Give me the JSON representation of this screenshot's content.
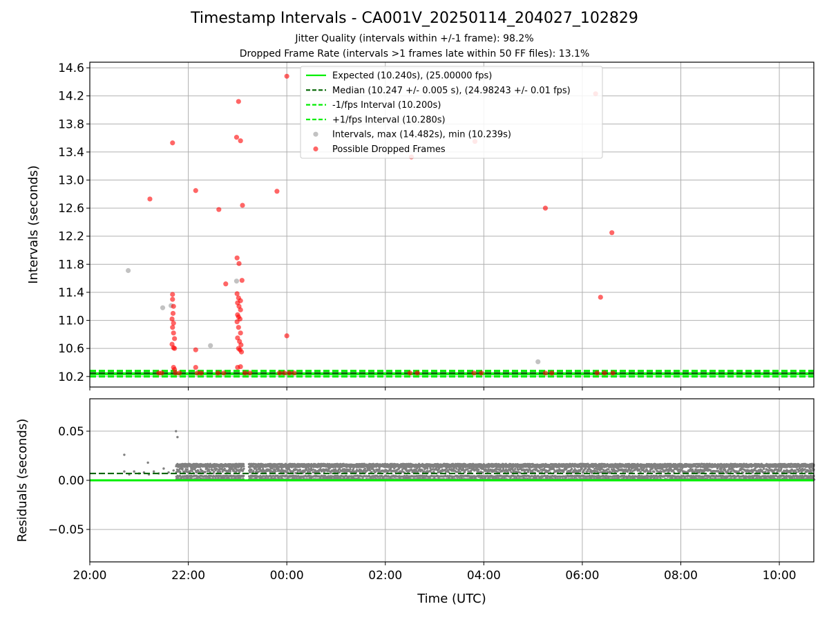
{
  "chart_data": [
    {
      "type": "scatter",
      "title": "Timestamp Intervals - CA001V_20250114_204027_102829",
      "subtitles": [
        "Jitter Quality (intervals within +/-1 frame): 98.2%",
        "Dropped Frame Rate (intervals >1 frames late within 50 FF files): 13.1%"
      ],
      "ylabel": "Intervals (seconds)",
      "xlim_hours": [
        20.0,
        34.7
      ],
      "ylim": [
        10.05,
        14.68
      ],
      "yticks": [
        "10.2",
        "10.6",
        "11.0",
        "11.4",
        "11.8",
        "12.2",
        "12.6",
        "13.0",
        "13.4",
        "13.8",
        "14.2",
        "14.6"
      ],
      "ytick_values": [
        10.2,
        10.6,
        11.0,
        11.4,
        11.8,
        12.2,
        12.6,
        13.0,
        13.4,
        13.8,
        14.2,
        14.6
      ],
      "grid": true,
      "legend_position": "top-center",
      "lines": [
        {
          "name": "Expected (10.240s), (25.00000 fps)",
          "y": 10.24,
          "color": "#00ee00",
          "dash": "solid"
        },
        {
          "name": "Median (10.247 +/- 0.005 s), (24.98243 +/- 0.01 fps)",
          "y": 10.247,
          "color": "#006400",
          "dash": "dashed"
        },
        {
          "name": "-1/fps Interval (10.200s)",
          "y": 10.2,
          "color": "#00ee00",
          "dash": "dashed"
        },
        {
          "name": "+1/fps Interval (10.280s)",
          "y": 10.28,
          "color": "#00ee00",
          "dash": "dashed"
        }
      ],
      "series": [
        {
          "name": "Intervals, max (14.482s), min (10.239s)",
          "color": "#999999",
          "points": [
            [
              20.78,
              11.71
            ],
            [
              21.48,
              11.18
            ],
            [
              21.65,
              11.21
            ],
            [
              22.45,
              10.64
            ],
            [
              22.98,
              11.56
            ],
            [
              29.1,
              10.41
            ]
          ]
        },
        {
          "name": "Possible Dropped Frames",
          "color": "#ff0000",
          "points": [
            [
              21.22,
              12.73
            ],
            [
              21.68,
              13.53
            ],
            [
              22.15,
              12.85
            ],
            [
              22.62,
              12.58
            ],
            [
              22.76,
              11.52
            ],
            [
              22.98,
              13.61
            ],
            [
              23.02,
              14.12
            ],
            [
              23.06,
              13.56
            ],
            [
              23.1,
              12.64
            ],
            [
              22.99,
              11.89
            ],
            [
              23.03,
              11.81
            ],
            [
              23.09,
              11.57
            ],
            [
              23.8,
              12.84
            ],
            [
              24.0,
              14.48
            ],
            [
              24.0,
              10.78
            ],
            [
              22.15,
              10.58
            ],
            [
              22.15,
              10.33
            ],
            [
              26.53,
              13.33
            ],
            [
              27.82,
              13.55
            ],
            [
              29.25,
              12.6
            ],
            [
              30.27,
              14.23
            ],
            [
              30.37,
              11.33
            ],
            [
              30.6,
              12.25
            ],
            [
              21.68,
              11.37
            ],
            [
              21.68,
              11.3
            ],
            [
              21.7,
              11.2
            ],
            [
              21.69,
              11.1
            ],
            [
              21.67,
              11.02
            ],
            [
              21.7,
              10.96
            ],
            [
              21.68,
              10.9
            ],
            [
              21.7,
              10.82
            ],
            [
              21.72,
              10.74
            ],
            [
              21.67,
              10.66
            ],
            [
              21.7,
              10.61
            ],
            [
              21.72,
              10.6
            ],
            [
              21.7,
              10.33
            ],
            [
              21.72,
              10.3
            ],
            [
              22.99,
              11.38
            ],
            [
              23.02,
              11.32
            ],
            [
              23.06,
              11.28
            ],
            [
              23.0,
              11.25
            ],
            [
              23.03,
              11.2
            ],
            [
              23.06,
              11.15
            ],
            [
              23.0,
              11.08
            ],
            [
              23.02,
              11.05
            ],
            [
              23.05,
              11.02
            ],
            [
              22.99,
              10.98
            ],
            [
              23.02,
              10.9
            ],
            [
              23.06,
              10.82
            ],
            [
              23.0,
              10.75
            ],
            [
              23.04,
              10.7
            ],
            [
              23.07,
              10.65
            ],
            [
              23.02,
              10.6
            ],
            [
              23.05,
              10.58
            ],
            [
              23.08,
              10.55
            ],
            [
              23.0,
              10.33
            ],
            [
              23.06,
              10.34
            ],
            [
              21.4,
              10.25
            ],
            [
              21.46,
              10.25
            ],
            [
              21.74,
              10.25
            ],
            [
              21.82,
              10.25
            ],
            [
              22.18,
              10.25
            ],
            [
              22.26,
              10.25
            ],
            [
              22.6,
              10.25
            ],
            [
              22.72,
              10.25
            ],
            [
              23.15,
              10.25
            ],
            [
              23.25,
              10.25
            ],
            [
              23.85,
              10.25
            ],
            [
              23.95,
              10.25
            ],
            [
              24.05,
              10.25
            ],
            [
              24.15,
              10.25
            ],
            [
              26.5,
              10.25
            ],
            [
              26.65,
              10.25
            ],
            [
              27.8,
              10.25
            ],
            [
              27.95,
              10.25
            ],
            [
              29.25,
              10.25
            ],
            [
              29.38,
              10.25
            ],
            [
              30.3,
              10.25
            ],
            [
              30.45,
              10.25
            ],
            [
              30.62,
              10.25
            ]
          ]
        }
      ]
    },
    {
      "type": "scatter",
      "ylabel": "Residuals (seconds)",
      "xlabel": "Time (UTC)",
      "xlim_hours": [
        20.0,
        34.7
      ],
      "ylim": [
        -0.083,
        0.083
      ],
      "yticks": [
        "−0.05",
        "0.00",
        "0.05"
      ],
      "ytick_values": [
        -0.05,
        0.0,
        0.05
      ],
      "xticks": [
        "20:00",
        "22:00",
        "00:00",
        "02:00",
        "04:00",
        "06:00",
        "08:00",
        "10:00"
      ],
      "xtick_hours": [
        20,
        22,
        24,
        26,
        28,
        30,
        32,
        34
      ],
      "grid": true,
      "lines": [
        {
          "y": 0.0,
          "color": "#00ee00",
          "dash": "solid"
        },
        {
          "y": 0.007,
          "color": "#006400",
          "dash": "dashed"
        }
      ],
      "series": [
        {
          "color": "#808080",
          "x_range_hours": [
            21.75,
            34.7
          ],
          "y_band": [
            0.0,
            0.016
          ],
          "gap_hours": [
            23.12,
            23.22
          ],
          "outliers": [
            [
              20.7,
              0.026
            ],
            [
              21.18,
              0.018
            ],
            [
              21.75,
              0.05
            ],
            [
              21.78,
              0.044
            ]
          ],
          "early_points": [
            [
              20.7,
              0.009
            ],
            [
              20.8,
              0.006
            ],
            [
              20.9,
              0.009
            ],
            [
              21.0,
              0.007
            ],
            [
              21.1,
              0.008
            ],
            [
              21.2,
              0.006
            ],
            [
              21.3,
              0.009
            ],
            [
              21.4,
              0.007
            ],
            [
              21.5,
              0.012
            ],
            [
              21.6,
              0.008
            ],
            [
              21.7,
              0.01
            ]
          ]
        }
      ]
    }
  ]
}
